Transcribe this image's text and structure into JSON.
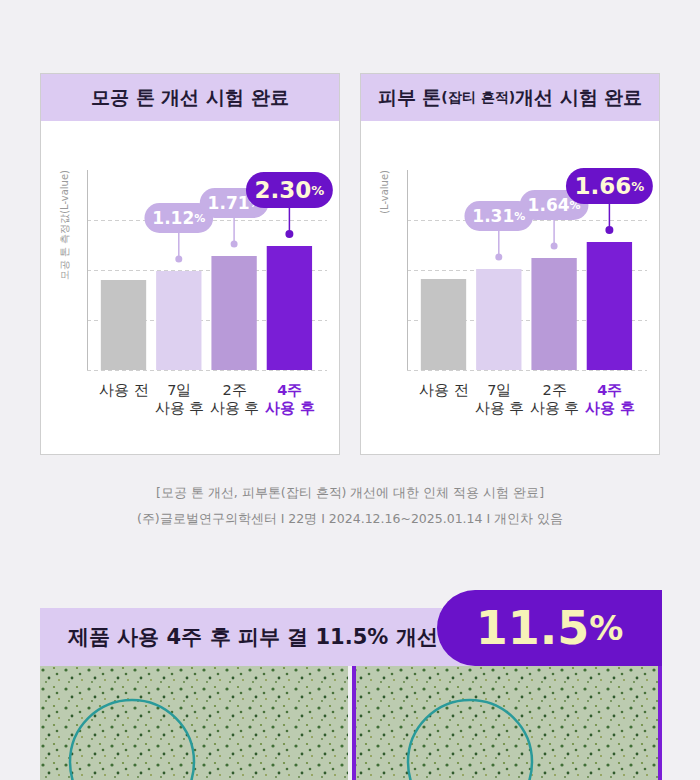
{
  "chart_data": [
    {
      "type": "bar",
      "title": "모공 톤 개선 시험 완료",
      "ylabel": "모공 톤 측정값(L-value)",
      "categories": [
        "사용 전",
        "7일\n사용 후",
        "2주\n사용 후",
        "4주\n사용 후"
      ],
      "values": [
        1.8,
        1.98,
        2.28,
        2.48
      ],
      "colors": [
        "#c4c4c4",
        "#ddd0f0",
        "#b89ad8",
        "#7a1ed6"
      ],
      "ylim": [
        0,
        4
      ],
      "yticks": [
        0,
        1,
        2,
        3
      ],
      "grid": true,
      "tick_labels": "x",
      "change_labels": [
        null,
        "1.12%",
        "1.71%",
        "2.30%"
      ]
    },
    {
      "type": "bar",
      "title": "피부 톤(잡티 흔적) 개선 시험 완료",
      "ylabel": "(L-value)",
      "categories": [
        "사용 전",
        "7일\n사용 후",
        "2주\n사용 후",
        "4주\n사용 후"
      ],
      "values": [
        1.82,
        2.02,
        2.24,
        2.56
      ],
      "colors": [
        "#c4c4c4",
        "#ddd0f0",
        "#b89ad8",
        "#7a1ed6"
      ],
      "ylim": [
        0,
        4
      ],
      "yticks": [
        0,
        1,
        2,
        3
      ],
      "grid": true,
      "tick_labels": "x",
      "change_labels": [
        null,
        "1.31%",
        "1.64%",
        "1.66%"
      ]
    }
  ],
  "caption": [
    "[모공 톤 개선, 피부톤(잡티 흔적) 개선에 대한 인체 적용 시험 완료]",
    "(주)글로벌연구의학센터 I 22명 I 2024.12.16~2025.01.14 I 개인차 있음"
  ],
  "banner": {
    "text": "제품 사용 4주 후 피부 결 11.5% 개선",
    "highlight": "11.5%"
  }
}
